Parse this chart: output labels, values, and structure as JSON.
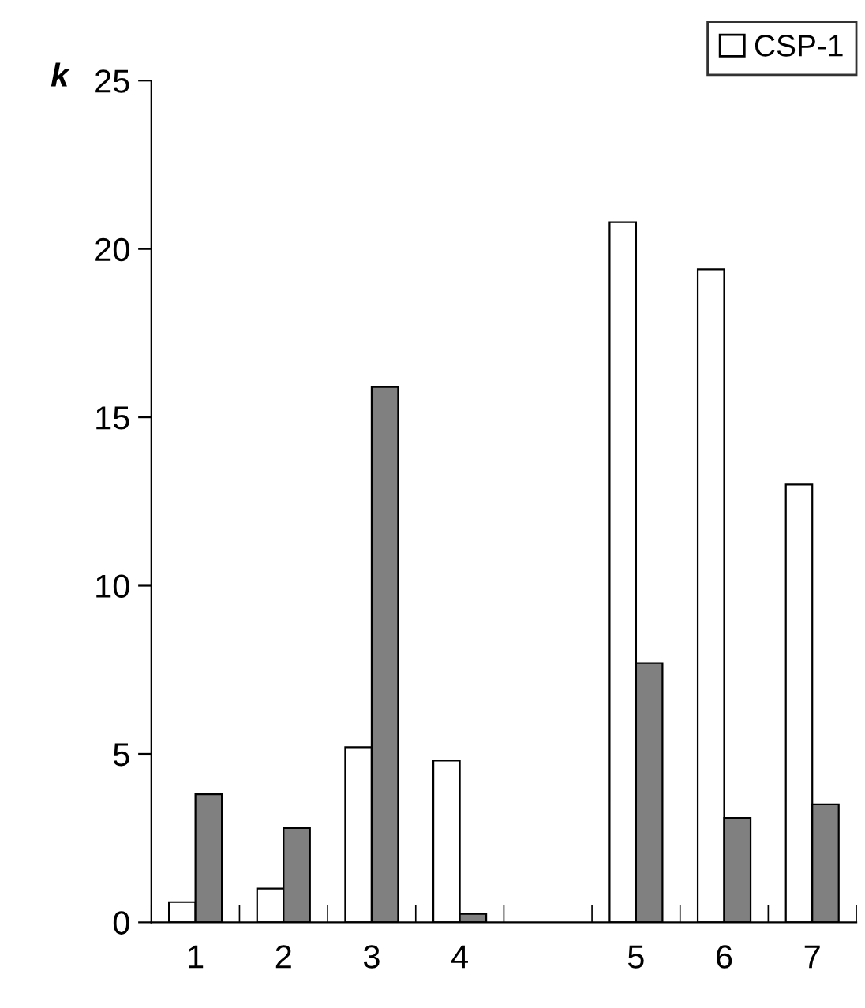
{
  "chart_data": {
    "type": "bar",
    "ylabel": "k",
    "categories": [
      "1",
      "2",
      "3",
      "4",
      null,
      "5",
      "6",
      "7"
    ],
    "series": [
      {
        "name": "CSP-1",
        "color": "#ffffff",
        "values": [
          0.6,
          1.0,
          5.2,
          4.8,
          null,
          20.8,
          19.4,
          13.0
        ]
      },
      {
        "color": "#808080",
        "values": [
          3.8,
          2.8,
          15.9,
          0.25,
          null,
          7.7,
          3.1,
          3.5
        ]
      }
    ],
    "ylim": [
      0,
      25
    ],
    "yticks": [
      0,
      5,
      10,
      15,
      20,
      25
    ],
    "grid": false,
    "legend": "top right"
  }
}
